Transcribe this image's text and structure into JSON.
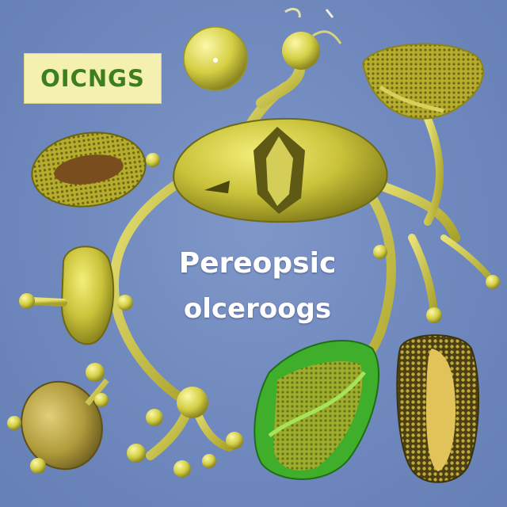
{
  "image": {
    "label_box": "OICNGS",
    "center_title_line1": "Pereopsic",
    "center_title_line2": "olceroogs"
  },
  "colors": {
    "background": "#728bc0",
    "organelle_yellow": "#c9c23a",
    "organelle_dark": "#8f8a1c",
    "label_box_fill": "#f4f0b0",
    "label_box_text": "#3f7e1e",
    "leaf_green": "#3fae2a"
  }
}
